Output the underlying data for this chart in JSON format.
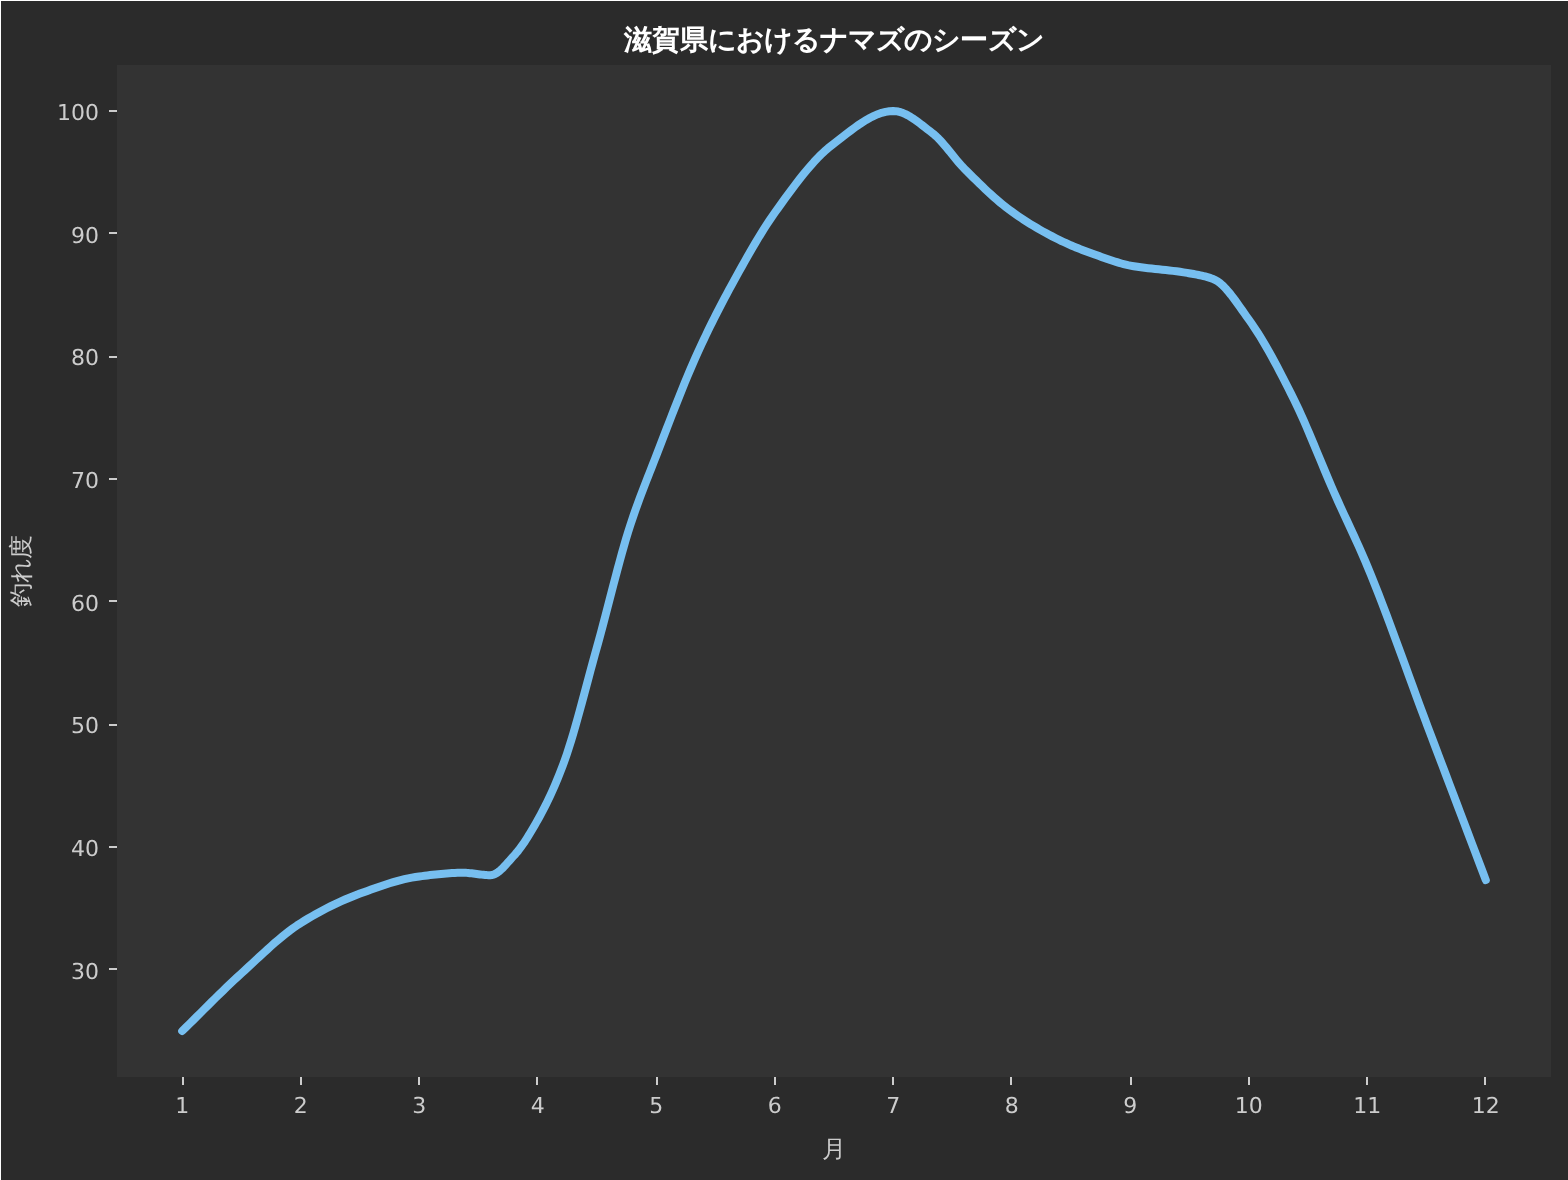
{
  "chart_data": {
    "type": "line",
    "title": "滋賀県におけるナマズのシーズン",
    "xlabel": "月",
    "ylabel": "釣れ度",
    "x": [
      1.0,
      1.5,
      2.0,
      2.5,
      3.0,
      3.37,
      3.6,
      3.8,
      4.0,
      4.21,
      4.5,
      4.78,
      5.0,
      5.35,
      5.63,
      6.0,
      6.48,
      7.0,
      7.33,
      7.6,
      8.0,
      8.42,
      8.7,
      9.0,
      9.48,
      9.7,
      10.0,
      10.38,
      10.72,
      11.0,
      11.51,
      12.0
    ],
    "series": [
      {
        "color": "#77bff0",
        "values": [
          25.0,
          29.7,
          33.8,
          36.2,
          37.6,
          37.9,
          37.7,
          39.3,
          42.2,
          46.6,
          56.3,
          66.2,
          71.9,
          80.3,
          85.7,
          91.7,
          97.2,
          100.0,
          98.2,
          95.3,
          91.8,
          89.4,
          88.3,
          87.4,
          86.8,
          86.3,
          83.0,
          76.5,
          68.9,
          62.9,
          49.8,
          37.3
        ]
      }
    ],
    "xlim": [
      0.45,
      12.55
    ],
    "ylim": [
      21.25,
      103.75
    ],
    "xticks": [
      1,
      2,
      3,
      4,
      5,
      6,
      7,
      8,
      9,
      10,
      11,
      12
    ],
    "yticks": [
      30,
      40,
      50,
      60,
      70,
      80,
      90,
      100
    ],
    "grid": false,
    "line_style": "solid"
  }
}
